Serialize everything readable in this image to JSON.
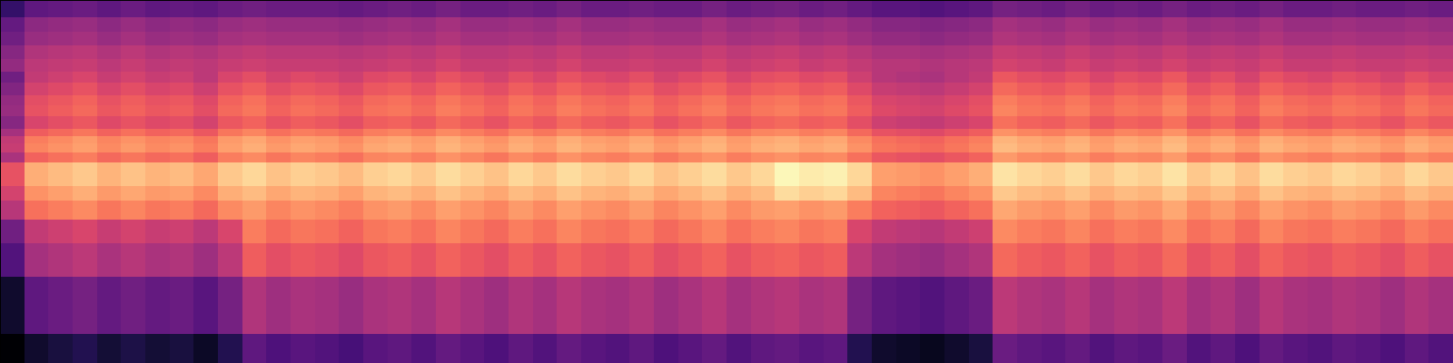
{
  "chart_data": {
    "type": "heatmap",
    "color": "magma",
    "tick_labels": false,
    "log": "y",
    "ylim": [
      0.7,
      57
    ],
    "y_edges": [
      0.7,
      1,
      2,
      3,
      4,
      5,
      6,
      7,
      8,
      9,
      10,
      11,
      12,
      14,
      16,
      18,
      21,
      24,
      28,
      33,
      39,
      46,
      57
    ],
    "zlim": [
      -80,
      -10
    ],
    "values": [
      [
        -88,
        -74,
        -72,
        -70,
        -73,
        -71,
        -73,
        -72,
        -75,
        -70,
        -60,
        -63,
        -61,
        -62,
        -64,
        -61,
        -60,
        -62,
        -59,
        -61,
        -63,
        -60,
        -62,
        -59,
        -61,
        -62,
        -60,
        -63,
        -61,
        -59,
        -62,
        -60,
        -59,
        -61,
        -60,
        -70,
        -74,
        -75,
        -76,
        -74,
        -72,
        -58,
        -60,
        -61,
        -59,
        -62,
        -60,
        -61,
        -58,
        -62,
        -60,
        -63,
        -59,
        -61,
        -62,
        -60,
        -61,
        -63,
        -60,
        -62
      ],
      [
        -74,
        -60,
        -58,
        -56,
        -59,
        -57,
        -59,
        -58,
        -61,
        -56,
        -46,
        -49,
        -47,
        -48,
        -50,
        -47,
        -46,
        -48,
        -45,
        -47,
        -49,
        -46,
        -48,
        -45,
        -47,
        -48,
        -46,
        -49,
        -47,
        -45,
        -48,
        -46,
        -45,
        -47,
        -46,
        -56,
        -60,
        -61,
        -62,
        -60,
        -58,
        -44,
        -46,
        -47,
        -45,
        -48,
        -46,
        -47,
        -44,
        -48,
        -46,
        -49,
        -45,
        -47,
        -48,
        -46,
        -47,
        -49,
        -46,
        -48
      ],
      [
        -62,
        -48,
        -46,
        -44,
        -47,
        -45,
        -47,
        -46,
        -49,
        -44,
        -34,
        -37,
        -35,
        -36,
        -38,
        -35,
        -34,
        -36,
        -33,
        -35,
        -37,
        -34,
        -36,
        -33,
        -35,
        -36,
        -34,
        -37,
        -35,
        -33,
        -36,
        -34,
        -33,
        -35,
        -34,
        -44,
        -48,
        -49,
        -50,
        -48,
        -46,
        -32,
        -34,
        -35,
        -33,
        -36,
        -34,
        -35,
        -32,
        -36,
        -34,
        -37,
        -33,
        -35,
        -36,
        -34,
        -35,
        -37,
        -34,
        -36
      ],
      [
        -57,
        -43,
        -41,
        -39,
        -42,
        -40,
        -42,
        -41,
        -44,
        -39,
        -29,
        -32,
        -30,
        -31,
        -33,
        -30,
        -29,
        -31,
        -28,
        -30,
        -32,
        -29,
        -31,
        -28,
        -30,
        -31,
        -29,
        -32,
        -30,
        -28,
        -31,
        -29,
        -28,
        -30,
        -29,
        -39,
        -43,
        -44,
        -45,
        -43,
        -41,
        -27,
        -29,
        -30,
        -28,
        -31,
        -29,
        -30,
        -27,
        -31,
        -29,
        -32,
        -28,
        -30,
        -31,
        -29,
        -30,
        -32,
        -29,
        -31
      ],
      [
        -45,
        -31,
        -29,
        -27,
        -30,
        -28,
        -30,
        -29,
        -32,
        -27,
        -25,
        -28,
        -26,
        -27,
        -29,
        -26,
        -25,
        -27,
        -24,
        -26,
        -28,
        -25,
        -27,
        -24,
        -26,
        -27,
        -25,
        -28,
        -26,
        -24,
        -27,
        -25,
        -24,
        -26,
        -25,
        -29,
        -33,
        -34,
        -35,
        -33,
        -31,
        -23,
        -25,
        -26,
        -24,
        -27,
        -25,
        -26,
        -23,
        -27,
        -25,
        -28,
        -24,
        -26,
        -27,
        -25,
        -26,
        -28,
        -25,
        -27
      ],
      [
        -40,
        -26,
        -24,
        -22,
        -25,
        -23,
        -25,
        -24,
        -27,
        -22,
        -20,
        -23,
        -21,
        -22,
        -24,
        -21,
        -20,
        -22,
        -19,
        -21,
        -23,
        -20,
        -22,
        -19,
        -21,
        -22,
        -20,
        -23,
        -21,
        -19,
        -22,
        -20,
        -15,
        -17,
        -16,
        -20,
        -28,
        -29,
        -30,
        -28,
        -26,
        -18,
        -20,
        -21,
        -19,
        -22,
        -20,
        -21,
        -18,
        -22,
        -20,
        -23,
        -19,
        -21,
        -22,
        -20,
        -21,
        -23,
        -20,
        -22
      ],
      [
        -36,
        -22,
        -20,
        -18,
        -21,
        -19,
        -21,
        -20,
        -23,
        -18,
        -16,
        -19,
        -17,
        -18,
        -20,
        -17,
        -16,
        -18,
        -15,
        -17,
        -19,
        -16,
        -18,
        -15,
        -17,
        -18,
        -16,
        -19,
        -17,
        -15,
        -18,
        -16,
        -11,
        -13,
        -12,
        -16,
        -24,
        -25,
        -26,
        -24,
        -22,
        -14,
        -16,
        -17,
        -15,
        -18,
        -16,
        -17,
        -14,
        -18,
        -16,
        -19,
        -15,
        -17,
        -18,
        -16,
        -17,
        -19,
        -16,
        -18
      ],
      [
        -36,
        -22,
        -20,
        -18,
        -21,
        -19,
        -21,
        -20,
        -23,
        -18,
        -16,
        -19,
        -17,
        -18,
        -20,
        -17,
        -16,
        -18,
        -15,
        -17,
        -19,
        -16,
        -18,
        -15,
        -17,
        -18,
        -16,
        -19,
        -17,
        -15,
        -18,
        -16,
        -11,
        -13,
        -12,
        -16,
        -24,
        -25,
        -26,
        -24,
        -22,
        -14,
        -16,
        -17,
        -15,
        -18,
        -16,
        -17,
        -14,
        -18,
        -16,
        -19,
        -15,
        -17,
        -18,
        -16,
        -17,
        -19,
        -16,
        -18
      ],
      [
        -47,
        -33,
        -31,
        -29,
        -32,
        -30,
        -32,
        -31,
        -34,
        -29,
        -27,
        -30,
        -28,
        -29,
        -31,
        -28,
        -27,
        -29,
        -26,
        -28,
        -30,
        -27,
        -29,
        -26,
        -28,
        -29,
        -27,
        -30,
        -28,
        -26,
        -29,
        -27,
        -26,
        -28,
        -27,
        -31,
        -35,
        -36,
        -37,
        -35,
        -33,
        -25,
        -27,
        -28,
        -26,
        -29,
        -27,
        -28,
        -25,
        -29,
        -27,
        -30,
        -26,
        -28,
        -29,
        -27,
        -28,
        -30,
        -27,
        -29
      ],
      [
        -42,
        -28,
        -26,
        -24,
        -27,
        -25,
        -27,
        -26,
        -29,
        -24,
        -22,
        -25,
        -23,
        -24,
        -26,
        -23,
        -22,
        -24,
        -21,
        -23,
        -25,
        -22,
        -24,
        -21,
        -23,
        -24,
        -22,
        -25,
        -23,
        -21,
        -24,
        -22,
        -21,
        -23,
        -22,
        -26,
        -30,
        -31,
        -32,
        -30,
        -28,
        -20,
        -22,
        -23,
        -21,
        -24,
        -22,
        -23,
        -20,
        -24,
        -22,
        -25,
        -21,
        -23,
        -24,
        -22,
        -23,
        -25,
        -22,
        -24
      ],
      [
        -43,
        -29,
        -27,
        -25,
        -28,
        -26,
        -28,
        -27,
        -30,
        -25,
        -23,
        -26,
        -24,
        -25,
        -27,
        -24,
        -23,
        -25,
        -22,
        -24,
        -26,
        -23,
        -25,
        -22,
        -24,
        -25,
        -23,
        -26,
        -24,
        -22,
        -25,
        -23,
        -22,
        -24,
        -23,
        -27,
        -31,
        -32,
        -33,
        -31,
        -29,
        -21,
        -23,
        -24,
        -22,
        -25,
        -23,
        -24,
        -21,
        -25,
        -23,
        -26,
        -22,
        -24,
        -25,
        -23,
        -24,
        -26,
        -23,
        -25
      ],
      [
        -48,
        -34,
        -32,
        -30,
        -33,
        -31,
        -33,
        -32,
        -35,
        -30,
        -28,
        -31,
        -29,
        -30,
        -32,
        -29,
        -28,
        -30,
        -27,
        -29,
        -31,
        -28,
        -30,
        -27,
        -29,
        -30,
        -28,
        -31,
        -29,
        -27,
        -30,
        -28,
        -27,
        -29,
        -28,
        -32,
        -36,
        -37,
        -38,
        -36,
        -34,
        -26,
        -28,
        -29,
        -27,
        -30,
        -28,
        -29,
        -26,
        -30,
        -28,
        -31,
        -27,
        -29,
        -30,
        -28,
        -29,
        -31,
        -28,
        -30
      ],
      [
        -53,
        -39,
        -37,
        -35,
        -38,
        -36,
        -38,
        -37,
        -40,
        -35,
        -33,
        -36,
        -34,
        -35,
        -37,
        -34,
        -33,
        -35,
        -32,
        -34,
        -36,
        -33,
        -35,
        -32,
        -34,
        -35,
        -33,
        -36,
        -34,
        -32,
        -35,
        -33,
        -32,
        -34,
        -33,
        -37,
        -41,
        -42,
        -43,
        -41,
        -39,
        -31,
        -33,
        -34,
        -32,
        -35,
        -33,
        -34,
        -31,
        -35,
        -33,
        -36,
        -32,
        -34,
        -35,
        -33,
        -34,
        -36,
        -33,
        -35
      ],
      [
        -50,
        -36,
        -34,
        -32,
        -35,
        -33,
        -35,
        -34,
        -37,
        -32,
        -30,
        -33,
        -31,
        -32,
        -34,
        -31,
        -30,
        -32,
        -29,
        -31,
        -33,
        -30,
        -32,
        -29,
        -31,
        -32,
        -30,
        -33,
        -31,
        -29,
        -32,
        -30,
        -29,
        -31,
        -30,
        -34,
        -38,
        -39,
        -40,
        -38,
        -36,
        -28,
        -30,
        -31,
        -29,
        -32,
        -30,
        -31,
        -28,
        -32,
        -30,
        -33,
        -29,
        -31,
        -32,
        -30,
        -31,
        -33,
        -30,
        -32
      ],
      [
        -51,
        -37,
        -35,
        -33,
        -36,
        -34,
        -36,
        -35,
        -38,
        -33,
        -31,
        -34,
        -32,
        -33,
        -35,
        -32,
        -31,
        -33,
        -30,
        -32,
        -34,
        -31,
        -33,
        -30,
        -32,
        -33,
        -31,
        -34,
        -32,
        -30,
        -33,
        -31,
        -30,
        -32,
        -31,
        -35,
        -39,
        -40,
        -41,
        -39,
        -37,
        -29,
        -31,
        -32,
        -30,
        -33,
        -31,
        -32,
        -29,
        -33,
        -31,
        -34,
        -30,
        -32,
        -33,
        -31,
        -32,
        -34,
        -31,
        -33
      ],
      [
        -54,
        -40,
        -38,
        -36,
        -39,
        -37,
        -39,
        -38,
        -41,
        -36,
        -34,
        -37,
        -35,
        -36,
        -38,
        -35,
        -34,
        -36,
        -33,
        -35,
        -37,
        -34,
        -36,
        -33,
        -35,
        -36,
        -34,
        -37,
        -35,
        -33,
        -36,
        -34,
        -33,
        -35,
        -34,
        -38,
        -42,
        -43,
        -44,
        -42,
        -40,
        -32,
        -34,
        -35,
        -33,
        -36,
        -34,
        -35,
        -32,
        -36,
        -34,
        -37,
        -33,
        -35,
        -36,
        -34,
        -35,
        -37,
        -34,
        -36
      ],
      [
        -57,
        -43,
        -41,
        -39,
        -42,
        -40,
        -42,
        -41,
        -44,
        -39,
        -37,
        -40,
        -38,
        -39,
        -41,
        -38,
        -37,
        -39,
        -36,
        -38,
        -40,
        -37,
        -39,
        -36,
        -38,
        -39,
        -37,
        -40,
        -38,
        -36,
        -39,
        -37,
        -36,
        -38,
        -37,
        -41,
        -45,
        -46,
        -47,
        -45,
        -43,
        -35,
        -37,
        -38,
        -36,
        -39,
        -37,
        -38,
        -35,
        -39,
        -37,
        -40,
        -36,
        -38,
        -39,
        -37,
        -38,
        -40,
        -37,
        -39
      ],
      [
        -51,
        -44,
        -43,
        -42,
        -44,
        -42,
        -44,
        -43,
        -44,
        -42,
        -41,
        -42,
        -42,
        -42,
        -43,
        -42,
        -41,
        -42,
        -40,
        -42,
        -42,
        -41,
        -42,
        -40,
        -42,
        -42,
        -41,
        -42,
        -42,
        -40,
        -42,
        -41,
        -40,
        -42,
        -41,
        -43,
        -45,
        -45,
        -46,
        -45,
        -44,
        -40,
        -41,
        -42,
        -40,
        -42,
        -41,
        -42,
        -40,
        -42,
        -41,
        -42,
        -40,
        -42,
        -42,
        -41,
        -42,
        -42,
        -41,
        -42
      ],
      [
        -53,
        -46,
        -45,
        -44,
        -46,
        -44,
        -46,
        -45,
        -46,
        -44,
        -43,
        -44,
        -44,
        -44,
        -45,
        -44,
        -43,
        -44,
        -42,
        -44,
        -44,
        -43,
        -44,
        -42,
        -44,
        -44,
        -43,
        -44,
        -44,
        -42,
        -44,
        -43,
        -42,
        -44,
        -43,
        -45,
        -47,
        -47,
        -48,
        -47,
        -46,
        -42,
        -43,
        -44,
        -42,
        -44,
        -43,
        -44,
        -42,
        -44,
        -43,
        -44,
        -42,
        -44,
        -44,
        -43,
        -44,
        -44,
        -43,
        -44
      ],
      [
        -57,
        -50,
        -49,
        -48,
        -50,
        -48,
        -50,
        -49,
        -50,
        -48,
        -47,
        -48,
        -48,
        -48,
        -49,
        -48,
        -47,
        -48,
        -46,
        -48,
        -48,
        -47,
        -48,
        -46,
        -48,
        -48,
        -47,
        -48,
        -48,
        -46,
        -48,
        -47,
        -46,
        -48,
        -47,
        -49,
        -51,
        -51,
        -52,
        -51,
        -50,
        -46,
        -47,
        -48,
        -46,
        -48,
        -47,
        -48,
        -46,
        -48,
        -47,
        -48,
        -46,
        -48,
        -48,
        -47,
        -48,
        -48,
        -47,
        -48
      ],
      [
        -59,
        -52,
        -51,
        -50,
        -52,
        -50,
        -52,
        -51,
        -52,
        -50,
        -49,
        -50,
        -50,
        -50,
        -51,
        -50,
        -49,
        -50,
        -48,
        -50,
        -50,
        -49,
        -50,
        -48,
        -50,
        -50,
        -49,
        -50,
        -50,
        -48,
        -50,
        -49,
        -48,
        -50,
        -49,
        -51,
        -53,
        -53,
        -54,
        -53,
        -52,
        -48,
        -49,
        -50,
        -48,
        -50,
        -49,
        -50,
        -48,
        -50,
        -49,
        -50,
        -48,
        -50,
        -50,
        -49,
        -50,
        -50,
        -49,
        -50
      ],
      [
        -67,
        -60,
        -59,
        -58,
        -60,
        -58,
        -60,
        -59,
        -60,
        -58,
        -57,
        -58,
        -58,
        -58,
        -59,
        -58,
        -57,
        -58,
        -56,
        -58,
        -58,
        -57,
        -58,
        -56,
        -58,
        -58,
        -57,
        -58,
        -58,
        -56,
        -58,
        -57,
        -56,
        -58,
        -57,
        -59,
        -61,
        -61,
        -62,
        -61,
        -60,
        -56,
        -57,
        -58,
        -56,
        -58,
        -57,
        -58,
        -56,
        -58,
        -57,
        -58,
        -56,
        -58,
        -58,
        -57,
        -58,
        -58,
        -57,
        -58
      ]
    ]
  }
}
